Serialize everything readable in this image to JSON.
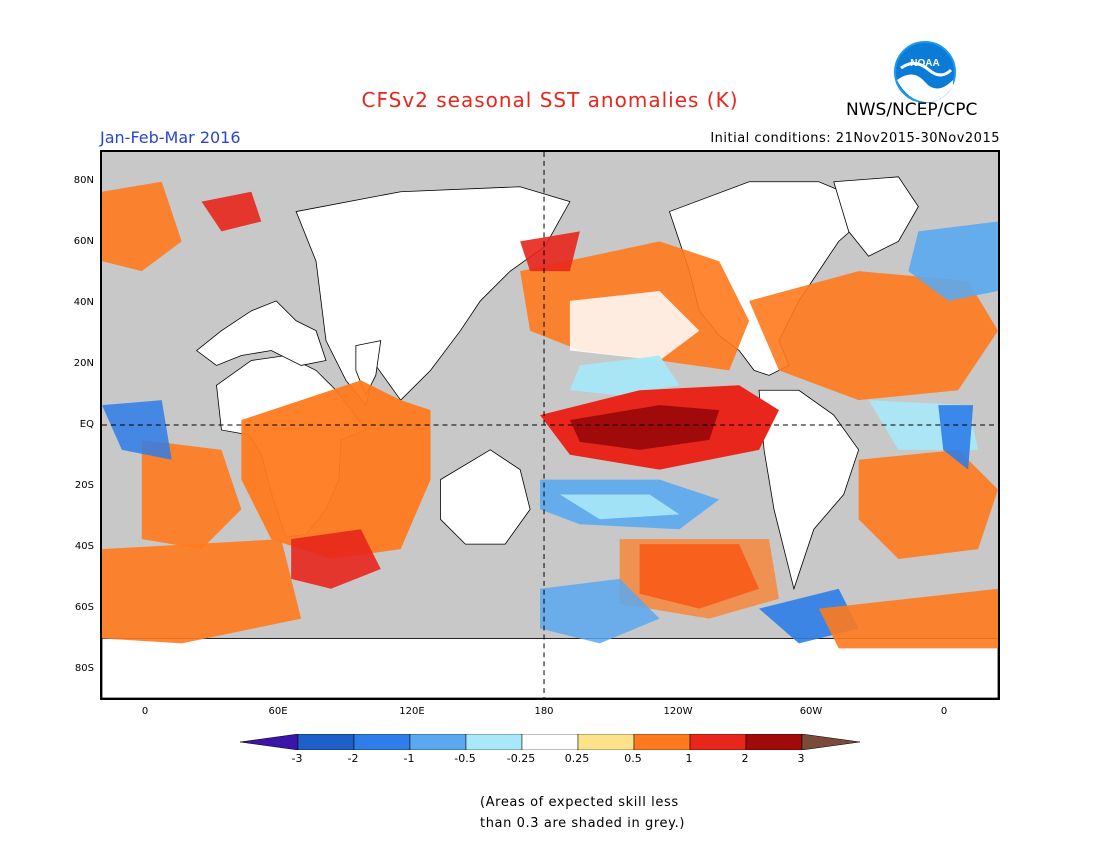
{
  "title": "CFSv2 seasonal SST anomalies (K)",
  "season_label": "Jan-Feb-Mar 2016",
  "initial_conditions": "Initial conditions: 21Nov2015-30Nov2015",
  "agency": "NWS/NCEP/CPC",
  "logo_text": "NOAA",
  "map": {
    "lat_labels": [
      "80N",
      "60N",
      "40N",
      "20N",
      "EQ",
      "20S",
      "40S",
      "60S",
      "80S"
    ],
    "lon_labels": [
      "0",
      "60E",
      "120E",
      "180",
      "120W",
      "60W",
      "0"
    ],
    "lon_range": [
      -20,
      380
    ],
    "lat_range": [
      -90,
      90
    ],
    "reference_lines": [
      "equator",
      "dateline"
    ]
  },
  "colorbar": {
    "levels": [
      "-3",
      "-2",
      "-1",
      "-0.5",
      "-0.25",
      "0.25",
      "0.5",
      "1",
      "2",
      "3"
    ],
    "colors": [
      "#3b14a8",
      "#1f5fc8",
      "#2e7de8",
      "#5aa8f0",
      "#a8e8f8",
      "#ffffff",
      "#fde28c",
      "#ff7a1e",
      "#e8261c",
      "#a00a0a",
      "#7a4a3a"
    ]
  },
  "colors": {
    "grey_mask": "#c8c8c8",
    "title": "#e8261c",
    "season": "#2a44d6"
  },
  "footnote": {
    "line1": "(Areas of expected skill less",
    "line2": "than 0.3 are shaded in grey.)"
  }
}
